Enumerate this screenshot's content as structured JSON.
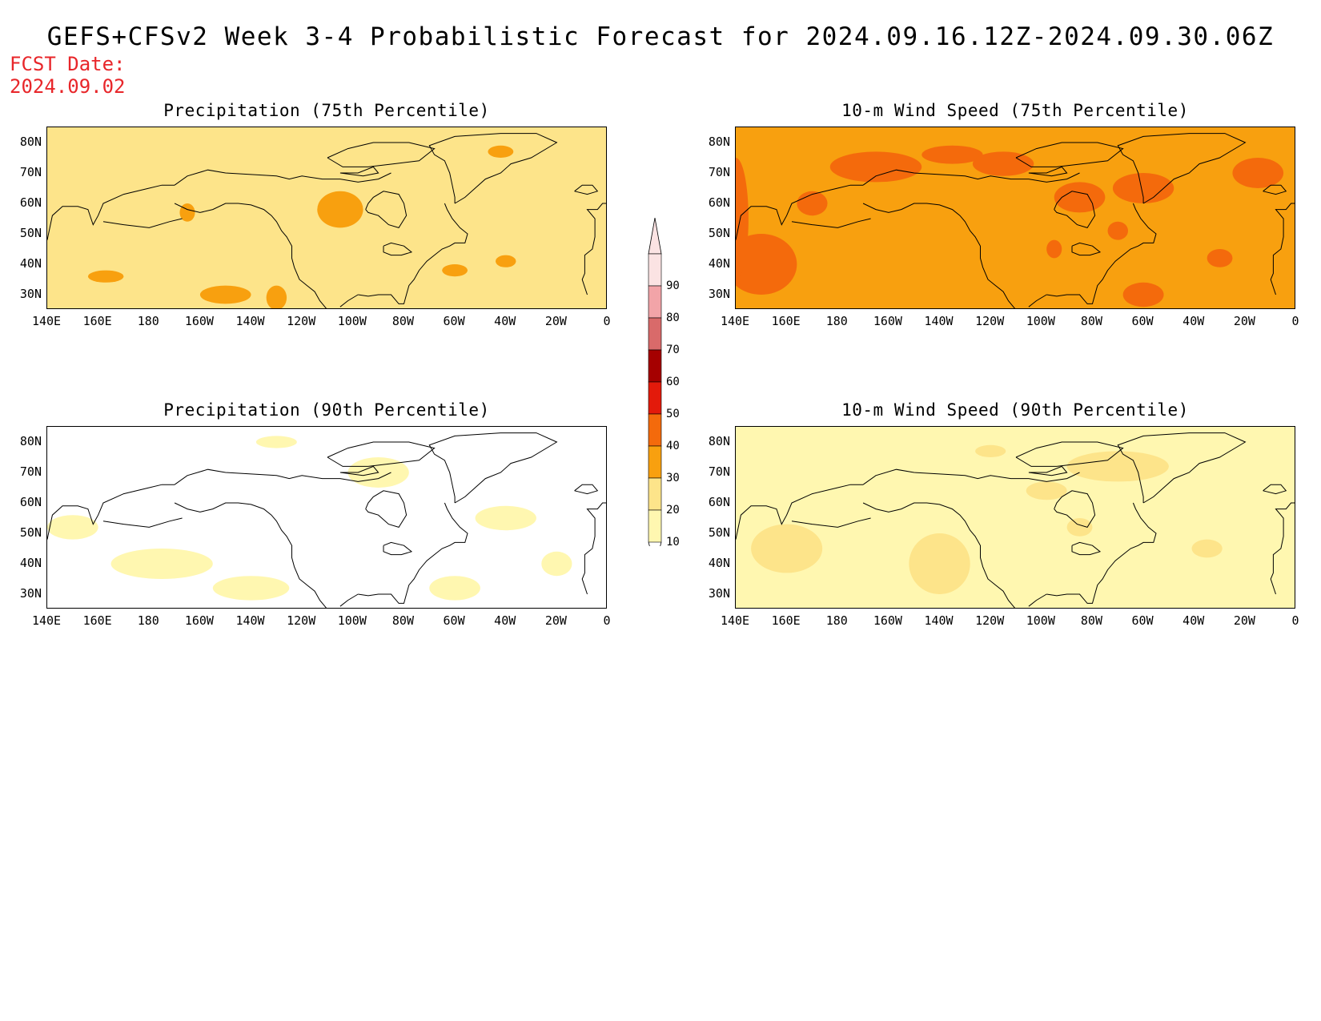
{
  "title": "GEFS+CFSv2 Week 3-4 Probabilistic Forecast for 2024.09.16.12Z-2024.09.30.06Z",
  "fcst_date": {
    "label": "FCST Date:",
    "value": "2024.09.02"
  },
  "x_ticks": [
    "140E",
    "160E",
    "180",
    "160W",
    "140W",
    "120W",
    "100W",
    "80W",
    "60W",
    "40W",
    "20W",
    "0"
  ],
  "y_ticks": [
    "80N",
    "70N",
    "60N",
    "50N",
    "40N",
    "30N"
  ],
  "y_tick_values": [
    80,
    70,
    60,
    50,
    40,
    30
  ],
  "map_extent": {
    "lon_min": 140,
    "lon_max": 360,
    "lat_min": 25,
    "lat_max": 85
  },
  "panels": [
    {
      "id": "precip-75",
      "title": "Precipitation (75th Percentile)",
      "base_level": 20,
      "highlight_level": 30
    },
    {
      "id": "wind-75",
      "title": "10-m Wind Speed (75th Percentile)",
      "base_level": 30,
      "highlight_level": 40
    },
    {
      "id": "precip-90",
      "title": "Precipitation (90th Percentile)",
      "base_level": 0,
      "highlight_level": 10
    },
    {
      "id": "wind-90",
      "title": "10-m Wind Speed (90th Percentile)",
      "base_level": 10,
      "highlight_level": 20
    }
  ],
  "colorbar": {
    "labels": [
      "90",
      "80",
      "70",
      "60",
      "50",
      "40",
      "30",
      "20",
      "10"
    ],
    "colors": {
      "90": "#fbe3e3",
      "80": "#f2a4a8",
      "70": "#d96a6a",
      "60": "#a50000",
      "50": "#e31a0b",
      "40": "#f46a0c",
      "30": "#f8a00f",
      "20": "#fde48a",
      "10": "#fff7b0",
      "0": "#ffffff"
    }
  }
}
